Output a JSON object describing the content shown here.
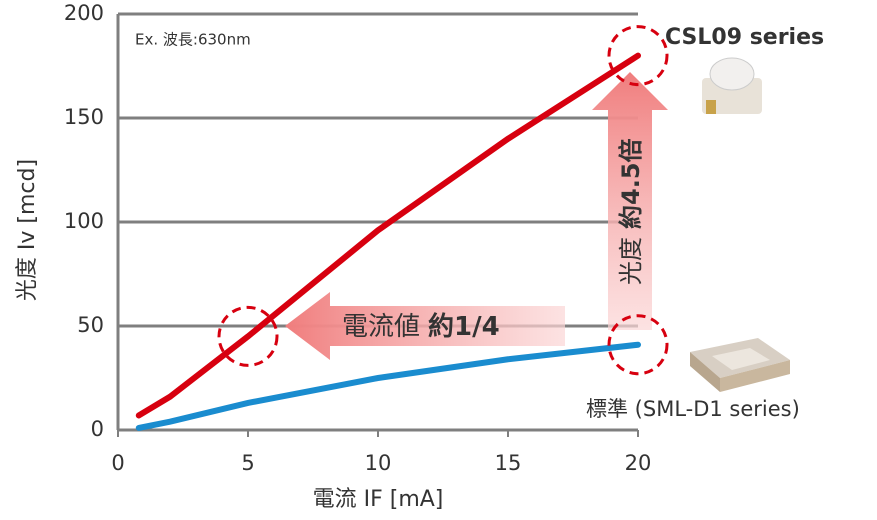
{
  "chart_data": {
    "type": "line",
    "note": "Ex. 波長:630nm",
    "xlabel": "電流 IF [mA]",
    "ylabel": "光度 Iv [mcd]",
    "x": [
      0.8,
      2,
      5,
      10,
      15,
      20
    ],
    "series": [
      {
        "name": "CSL09 series",
        "color": "#d7000f",
        "values": [
          7,
          16,
          45,
          96,
          140,
          180
        ]
      },
      {
        "name": "標準 (SML-D1 series)",
        "color": "#1a8ccf",
        "values": [
          1,
          4,
          13,
          25,
          34,
          41
        ]
      }
    ],
    "xlim": [
      0,
      20
    ],
    "xticks": [
      0,
      5,
      10,
      15,
      20
    ],
    "ylim": [
      0,
      200
    ],
    "yticks": [
      0,
      50,
      100,
      150,
      200
    ],
    "grid": true,
    "annotations": [
      {
        "text": "電流値",
        "emphasis": "約1/4"
      },
      {
        "text": "光度",
        "emphasis": "約4.5倍"
      }
    ]
  }
}
